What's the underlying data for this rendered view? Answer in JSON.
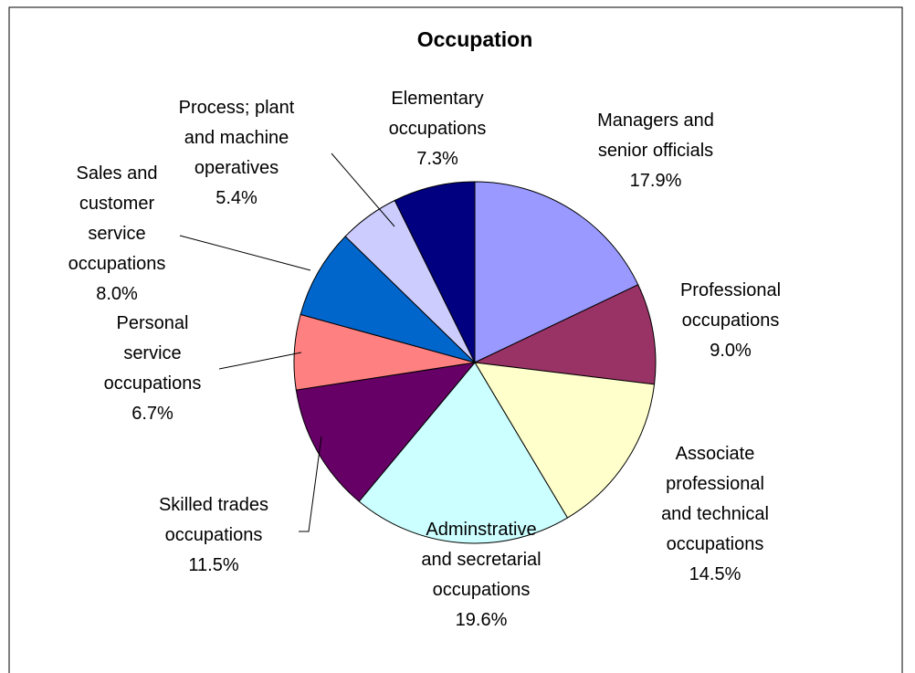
{
  "chart_data": {
    "type": "pie",
    "title": "Occupation",
    "categories": [
      "Managers and senior officials",
      "Professional occupations",
      "Associate professional and technical occupations",
      "Adminstrative and secretarial occupations",
      "Skilled trades occupations",
      "Personal service occupations",
      "Sales and customer service occupations",
      "Process; plant and machine operatives",
      "Elementary occupations"
    ],
    "values": [
      17.9,
      9.0,
      14.5,
      19.6,
      11.5,
      6.7,
      8.0,
      5.4,
      7.3
    ],
    "value_labels": [
      "17.9%",
      "9.0%",
      "14.5%",
      "19.6%",
      "11.5%",
      "6.7%",
      "8.0%",
      "5.4%",
      "7.3%"
    ],
    "colors": [
      "#9999ff",
      "#993366",
      "#ffffcc",
      "#ccffff",
      "#660066",
      "#ff8080",
      "#0066cc",
      "#ccccff",
      "#000080"
    ]
  }
}
